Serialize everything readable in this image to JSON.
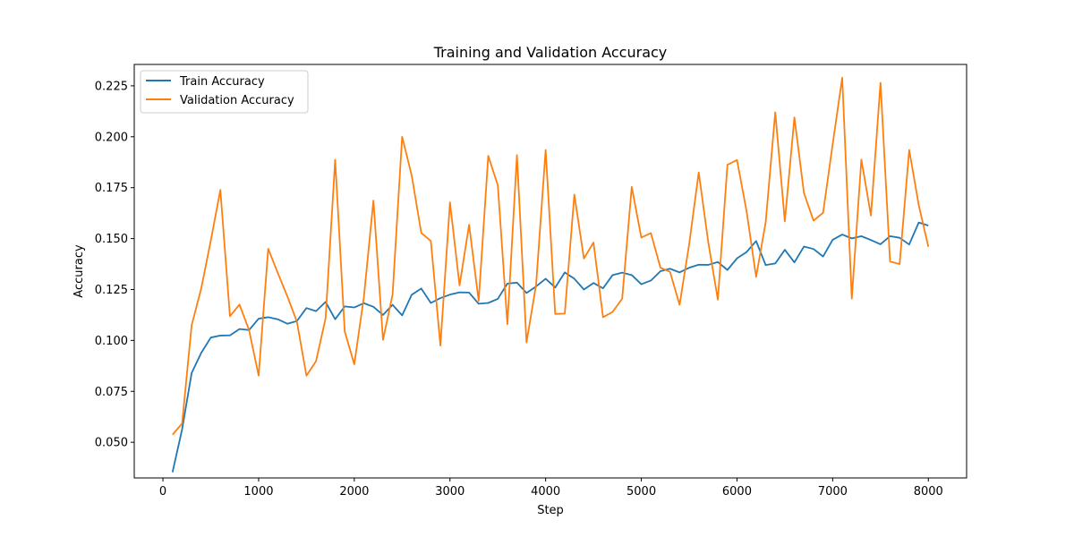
{
  "chart_data": {
    "type": "line",
    "title": "Training and Validation Accuracy",
    "xlabel": "Step",
    "ylabel": "Accuracy",
    "xlim": [
      -300,
      8400
    ],
    "ylim": [
      0.0325,
      0.2355
    ],
    "xticks": [
      0,
      1000,
      2000,
      3000,
      4000,
      5000,
      6000,
      7000,
      8000
    ],
    "xtick_labels": [
      "0",
      "1000",
      "2000",
      "3000",
      "4000",
      "5000",
      "6000",
      "7000",
      "8000"
    ],
    "yticks": [
      0.05,
      0.075,
      0.1,
      0.125,
      0.15,
      0.175,
      0.2,
      0.225
    ],
    "ytick_labels": [
      "0.050",
      "0.075",
      "0.100",
      "0.125",
      "0.150",
      "0.175",
      "0.200",
      "0.225"
    ],
    "grid": false,
    "legend_position": "upper-left",
    "x": [
      100,
      200,
      300,
      400,
      500,
      600,
      700,
      800,
      900,
      1000,
      1100,
      1200,
      1300,
      1400,
      1500,
      1600,
      1700,
      1800,
      1900,
      2000,
      2100,
      2200,
      2300,
      2400,
      2500,
      2600,
      2700,
      2800,
      2900,
      3000,
      3100,
      3200,
      3300,
      3400,
      3500,
      3600,
      3700,
      3800,
      3900,
      4000,
      4100,
      4200,
      4300,
      4400,
      4500,
      4600,
      4700,
      4800,
      4900,
      5000,
      5100,
      5200,
      5300,
      5400,
      5500,
      5600,
      5700,
      5800,
      5900,
      6000,
      6100,
      6200,
      6300,
      6400,
      6500,
      6600,
      6700,
      6800,
      6900,
      7000,
      7100,
      7200,
      7300,
      7400,
      7500,
      7600,
      7700,
      7800,
      7900,
      8000
    ],
    "series": [
      {
        "name": "Train Accuracy",
        "color": "#1f77b4",
        "values": [
          0.0353,
          0.0563,
          0.084,
          0.0939,
          0.1014,
          0.1024,
          0.1025,
          0.1056,
          0.1051,
          0.1107,
          0.1114,
          0.1104,
          0.1082,
          0.1095,
          0.1159,
          0.1144,
          0.1189,
          0.1104,
          0.1167,
          0.1162,
          0.1183,
          0.1165,
          0.1125,
          0.1175,
          0.1123,
          0.1224,
          0.1255,
          0.1184,
          0.1208,
          0.1225,
          0.1236,
          0.1235,
          0.118,
          0.1184,
          0.1204,
          0.1279,
          0.1284,
          0.1233,
          0.1265,
          0.1303,
          0.126,
          0.1334,
          0.1303,
          0.125,
          0.1282,
          0.1256,
          0.1321,
          0.1333,
          0.1321,
          0.1276,
          0.1294,
          0.134,
          0.1352,
          0.1334,
          0.1357,
          0.1372,
          0.1371,
          0.1385,
          0.1346,
          0.1403,
          0.1434,
          0.1488,
          0.137,
          0.1378,
          0.1445,
          0.1383,
          0.1461,
          0.1449,
          0.1412,
          0.1494,
          0.152,
          0.1501,
          0.1512,
          0.1493,
          0.1472,
          0.1512,
          0.1504,
          0.1471,
          0.1579,
          0.1564
        ]
      },
      {
        "name": "Validation Accuracy",
        "color": "#ff7f0e",
        "values": [
          0.0537,
          0.0592,
          0.1075,
          0.1255,
          0.149,
          0.1739,
          0.1119,
          0.1176,
          0.1051,
          0.0827,
          0.145,
          0.1332,
          0.1217,
          0.1092,
          0.0827,
          0.0898,
          0.1109,
          0.1887,
          0.1044,
          0.0883,
          0.1212,
          0.1687,
          0.1003,
          0.1225,
          0.2,
          0.181,
          0.1528,
          0.1488,
          0.0975,
          0.1678,
          0.127,
          0.1568,
          0.1194,
          0.1906,
          0.1762,
          0.108,
          0.191,
          0.099,
          0.1273,
          0.1935,
          0.113,
          0.1132,
          0.1716,
          0.1402,
          0.1481,
          0.1114,
          0.114,
          0.1205,
          0.1754,
          0.1505,
          0.1527,
          0.1357,
          0.1337,
          0.1175,
          0.1472,
          0.1825,
          0.1481,
          0.12,
          0.1862,
          0.1886,
          0.1635,
          0.1312,
          0.1581,
          0.212,
          0.1585,
          0.2095,
          0.1724,
          0.1588,
          0.1627,
          0.1963,
          0.229,
          0.1205,
          0.1888,
          0.1613,
          0.2265,
          0.1387,
          0.1375,
          0.1935,
          0.1664,
          0.146
        ]
      }
    ]
  }
}
